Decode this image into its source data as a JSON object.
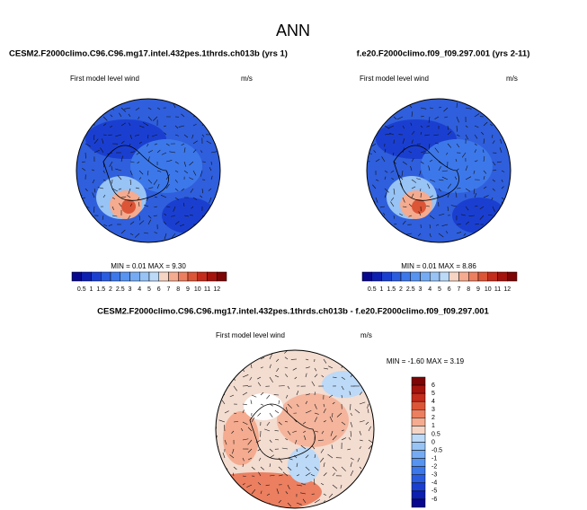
{
  "title": "ANN",
  "panels": [
    {
      "title": "CESM2.F2000climo.C96.C96.mg17.intel.432pes.1thrds.ch013b (yrs 1)",
      "subtitle": "First model level wind",
      "units": "m/s",
      "minmax": "MIN =  0.01 MAX =  9.30",
      "colorbar": [
        "0.5",
        "1",
        "1.5",
        "2",
        "2.5",
        "3",
        "4",
        "5",
        "6",
        "7",
        "8",
        "9",
        "10",
        "11",
        "12"
      ]
    },
    {
      "title": "f.e20.F2000climo.f09_f09.297.001 (yrs 2-11)",
      "subtitle": "First model level wind",
      "units": "m/s",
      "minmax": "MIN =  0.01 MAX =  8.86",
      "colorbar": [
        "0.5",
        "1",
        "1.5",
        "2",
        "2.5",
        "3",
        "4",
        "5",
        "6",
        "7",
        "8",
        "9",
        "10",
        "11",
        "12"
      ]
    },
    {
      "title": "CESM2.F2000climo.C96.C96.mg17.intel.432pes.1thrds.ch013b - f.e20.F2000climo.f09_f09.297.001",
      "subtitle": "First model level wind",
      "units": "m/s",
      "minmax": "MIN = -1.60 MAX =  3.19",
      "colorbar": [
        "6",
        "5",
        "4",
        "3",
        "2",
        "1",
        "0.5",
        "0",
        "-0.5",
        "-1",
        "-2",
        "-3",
        "-4",
        "-5",
        "-6"
      ]
    }
  ]
}
